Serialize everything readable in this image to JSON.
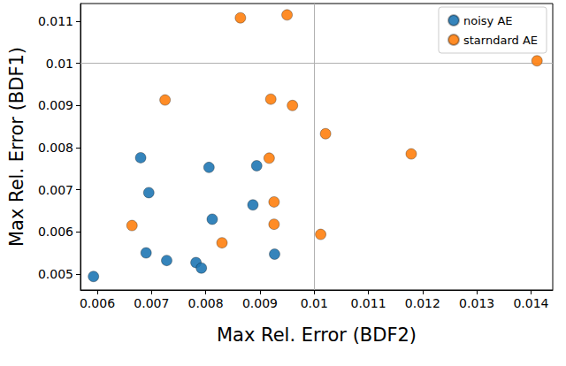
{
  "chart_data": {
    "type": "scatter",
    "x_label": "Max Rel. Error (BDF2)",
    "y_label": "Max Rel. Error (BDF1)",
    "xlim": [
      0.00569,
      0.0144
    ],
    "ylim": [
      0.00462,
      0.01142
    ],
    "xticks": [
      0.006,
      0.007,
      0.008,
      0.009,
      0.01,
      0.011,
      0.012,
      0.013,
      0.014
    ],
    "yticks": [
      0.005,
      0.006,
      0.007,
      0.008,
      0.009,
      0.01,
      0.011
    ],
    "grid": true,
    "legend": "upper right",
    "marker": "circle",
    "series": [
      {
        "name": "noisy AE",
        "color": "#1f77b4",
        "x": [
          0.00593,
          0.0068,
          0.00695,
          0.0069,
          0.00728,
          0.00806,
          0.00812,
          0.00782,
          0.00792,
          0.00894,
          0.00887,
          0.00927
        ],
        "y": [
          0.00494,
          0.00776,
          0.00693,
          0.0055,
          0.00532,
          0.00753,
          0.0063,
          0.00527,
          0.00514,
          0.00757,
          0.00664,
          0.00547
        ]
      },
      {
        "name": "starndard AE",
        "color": "#ff7f0e",
        "x": [
          0.00864,
          0.0095,
          0.01411,
          0.00725,
          0.0092,
          0.0096,
          0.01021,
          0.00917,
          0.01179,
          0.00926,
          0.00664,
          0.00926,
          0.0083,
          0.01012
        ],
        "y": [
          0.01108,
          0.01115,
          0.01006,
          0.00913,
          0.00915,
          0.009,
          0.00833,
          0.00775,
          0.00785,
          0.00671,
          0.00615,
          0.00618,
          0.00574,
          0.00594
        ]
      }
    ]
  }
}
